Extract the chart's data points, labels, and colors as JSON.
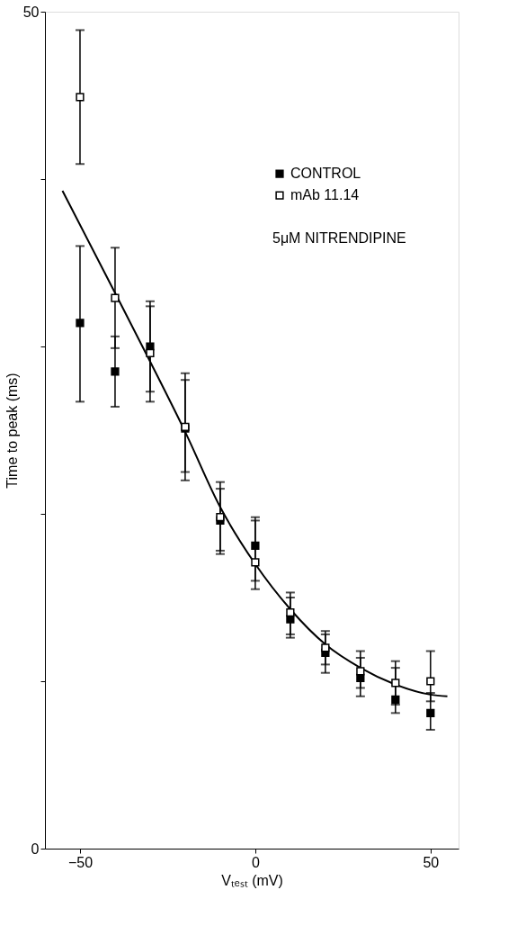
{
  "chart_data": {
    "type": "scatter",
    "xlabel": "Vₜₑₛₜ (mV)",
    "ylabel": "Time to peak (ms)",
    "x": [
      -50,
      -40,
      -30,
      -20,
      -10,
      0,
      10,
      20,
      30,
      40,
      50
    ],
    "series": [
      {
        "name": "CONTROL",
        "color": "#000000",
        "marker": "square",
        "values": [
          31.4,
          28.5,
          30.0,
          25.1,
          19.6,
          18.1,
          13.7,
          11.7,
          10.2,
          8.9,
          8.1
        ],
        "errors": [
          [
            26.7,
            36.0
          ],
          [
            26.4,
            30.6
          ],
          [
            27.3,
            32.7
          ],
          [
            22.0,
            28.0
          ],
          [
            17.6,
            21.5
          ],
          [
            15.5,
            19.6
          ],
          [
            12.6,
            15.0
          ],
          [
            10.5,
            12.8
          ],
          [
            9.1,
            11.4
          ],
          [
            8.1,
            10.8
          ],
          [
            7.1,
            9.3
          ]
        ]
      },
      {
        "name": "mAb 11.14",
        "color": "#ffffff",
        "marker": "square",
        "values": [
          44.9,
          32.9,
          29.6,
          25.2,
          19.8,
          17.1,
          14.1,
          12.0,
          10.6,
          9.9,
          10.0
        ],
        "errors": [
          [
            40.9,
            48.9
          ],
          [
            29.9,
            35.9
          ],
          [
            26.7,
            32.4
          ],
          [
            22.5,
            28.4
          ],
          [
            17.8,
            21.9
          ],
          [
            16.0,
            19.8
          ],
          [
            12.8,
            15.3
          ],
          [
            11.0,
            13.0
          ],
          [
            9.6,
            11.8
          ],
          [
            8.6,
            11.2
          ],
          [
            8.8,
            11.8
          ]
        ]
      },
      {
        "type": "line",
        "color": "#000000",
        "x": [
          -55,
          -40,
          -30,
          -20,
          -10,
          0,
          10,
          20,
          30,
          40,
          50,
          54.8
        ],
        "values": [
          39.3,
          33.2,
          29.1,
          24.9,
          20.4,
          17.0,
          14.3,
          12.2,
          10.8,
          9.8,
          9.2,
          9.1
        ]
      }
    ],
    "annotations": [
      "5μM NITRENDIPINE"
    ],
    "legend": "top right",
    "grid": false,
    "xlim": [
      -60,
      58
    ],
    "xticks": [
      -50,
      0,
      50
    ],
    "ylim": [
      0,
      50
    ],
    "yticks": [
      0,
      {
        "value": 10,
        "label": null
      },
      {
        "value": 20,
        "label": null
      },
      {
        "value": 30,
        "label": null
      },
      {
        "value": 40,
        "label": null
      },
      50
    ]
  }
}
